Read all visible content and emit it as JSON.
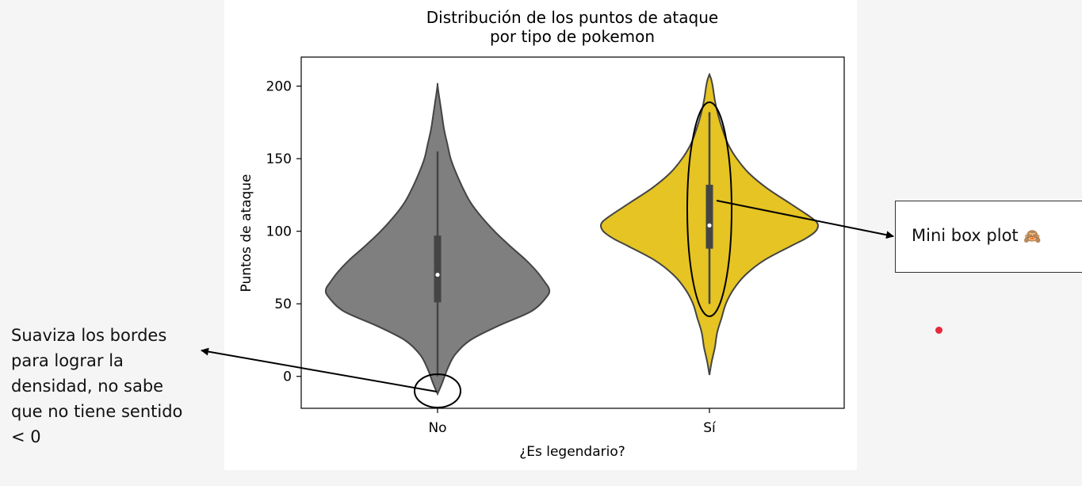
{
  "notes": {
    "smoothing": "Suaviza los bordes\npara lograr la\ndensidad, no sabe\nque no tiene sentido\n< 0",
    "mini_box_plot": "Mini box plot",
    "mini_box_plot_emoji": "🙈"
  },
  "chart_data": {
    "type": "violin",
    "title": "Distribución de los puntos de ataque\npor tipo de pokemon",
    "xlabel": "¿Es legendario?",
    "ylabel": "Puntos de ataque",
    "categories": [
      "No",
      "Sí"
    ],
    "ylim": [
      -22,
      220
    ],
    "yticks": [
      0,
      50,
      100,
      150,
      200
    ],
    "grid": false,
    "series": [
      {
        "category": "No",
        "color": "#7f7f7f",
        "density": {
          "y": [
            -12,
            -5,
            5,
            15,
            25,
            35,
            45,
            55,
            60,
            65,
            72,
            80,
            90,
            100,
            110,
            120,
            130,
            140,
            150,
            160,
            170,
            180,
            190,
            195,
            201
          ],
          "width": [
            0.0,
            0.04,
            0.09,
            0.16,
            0.3,
            0.56,
            0.86,
            1.0,
            1.02,
            0.98,
            0.91,
            0.81,
            0.66,
            0.52,
            0.4,
            0.3,
            0.23,
            0.17,
            0.12,
            0.09,
            0.06,
            0.04,
            0.02,
            0.01,
            0.0
          ]
        },
        "whisker": [
          0,
          155
        ],
        "q1": 51,
        "median": 70,
        "q3": 97
      },
      {
        "category": "Sí",
        "color": "#e5c423",
        "density": {
          "y": [
            1,
            10,
            20,
            30,
            40,
            50,
            60,
            70,
            80,
            90,
            95,
            100,
            105,
            110,
            120,
            130,
            140,
            150,
            160,
            170,
            180,
            190,
            200,
            205,
            208
          ],
          "width": [
            0.0,
            0.02,
            0.05,
            0.07,
            0.11,
            0.15,
            0.22,
            0.33,
            0.5,
            0.75,
            0.88,
            0.97,
            0.99,
            0.92,
            0.72,
            0.52,
            0.36,
            0.25,
            0.17,
            0.12,
            0.08,
            0.05,
            0.03,
            0.015,
            0.0
          ]
        },
        "whisker": [
          50,
          182
        ],
        "q1": 88,
        "median": 104,
        "q3": 132
      }
    ]
  }
}
